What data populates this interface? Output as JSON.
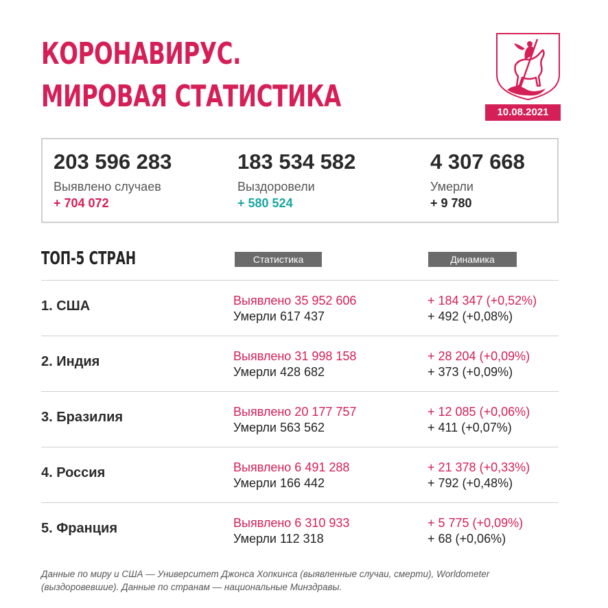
{
  "header": {
    "title_line1": "КОРОНАВИРУС.",
    "title_line2": "МИРОВАЯ СТАТИСТИКА",
    "date": "10.08.2021",
    "emblem_icon": "moscow-coat-of-arms-icon"
  },
  "colors": {
    "accent": "#d51f57",
    "green": "#1aa6a0",
    "dark": "#222222",
    "pill": "#6b6b6b"
  },
  "totals": {
    "cases": {
      "value": "203 596 283",
      "label": "Выявлено случаев",
      "delta": "+ 704 072"
    },
    "recovered": {
      "value": "183 534 582",
      "label": "Выздоровели",
      "delta": "+ 580 524"
    },
    "deaths": {
      "value": "4 307 668",
      "label": "Умерли",
      "delta": "+ 9 780"
    }
  },
  "top5": {
    "heading": "ТОП-5 СТРАН",
    "col_stats": "Статистика",
    "col_dynamics": "Динамика",
    "rows": [
      {
        "country": "1. США",
        "cases": "Выявлено 35 952 606",
        "deaths": "Умерли 617 437",
        "cases_delta": "+ 184 347 (+0,52%)",
        "deaths_delta": "+ 492 (+0,08%)"
      },
      {
        "country": "2. Индия",
        "cases": "Выявлено 31 998 158",
        "deaths": "Умерли 428 682",
        "cases_delta": "+ 28 204 (+0,09%)",
        "deaths_delta": "+ 373 (+0,09%)"
      },
      {
        "country": "3. Бразилия",
        "cases": "Выявлено 20 177 757",
        "deaths": "Умерли 563 562",
        "cases_delta": "+ 12 085 (+0,06%)",
        "deaths_delta": "+ 411 (+0,07%)"
      },
      {
        "country": "4. Россия",
        "cases": "Выявлено 6 491 288",
        "deaths": "Умерли 166 442",
        "cases_delta": "+ 21 378 (+0,33%)",
        "deaths_delta": "+ 792 (+0,48%)"
      },
      {
        "country": "5. Франция",
        "cases": "Выявлено 6 310 933",
        "deaths": "Умерли 112 318",
        "cases_delta": "+ 5 775 (+0,09%)",
        "deaths_delta": "+ 68 (+0,06%)"
      }
    ]
  },
  "footnote": {
    "line1": "Данные по миру и США — Университет Джонса Хопкинса (выявленные случаи, смерти), Worldometer",
    "line2": "(выздоровевшие). Данные по странам — национальные Минздравы."
  }
}
